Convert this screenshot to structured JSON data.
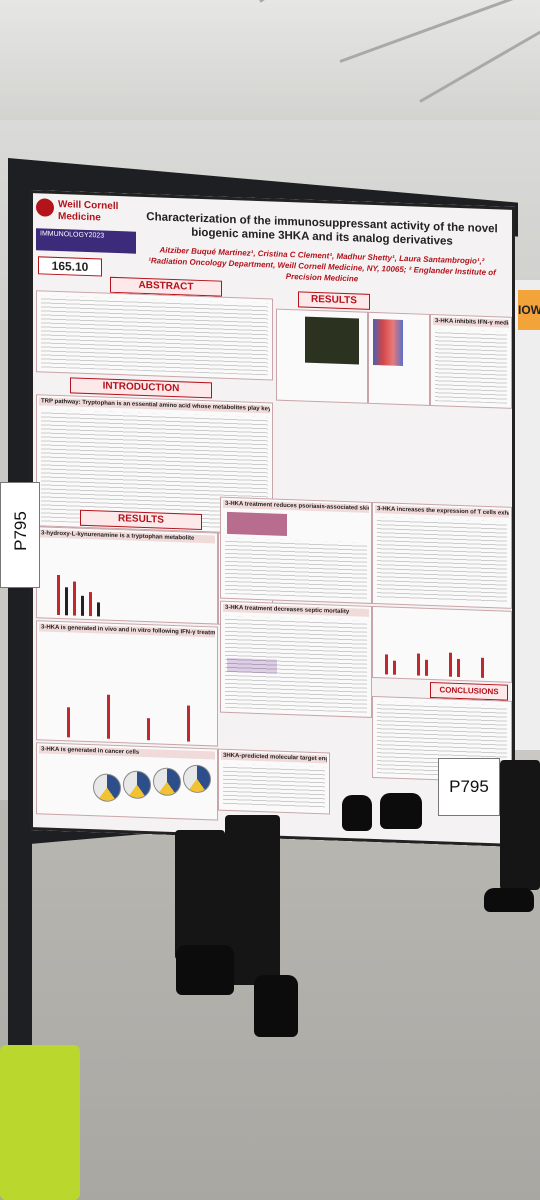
{
  "poster": {
    "institution": "Weill Cornell\nMedicine",
    "conference": "IMMUNOLOGY2023",
    "board_number": "165.10",
    "title": "Characterization of the immunosuppressant activity of the novel biogenic amine 3HKA and its analog derivatives",
    "authors": "Aitziber Buqué Martinez¹, Cristina C Clement¹, Madhur Shetty¹, Laura Santambrogio¹,²",
    "affiliations": "¹Radiation Oncology Department, Weill Cornell Medicine, NY, 10065; ² Englander Institute of Precision Medicine",
    "sections": {
      "abstract": "ABSTRACT",
      "introduction": "INTRODUCTION",
      "results_left": "RESULTS",
      "results_top": "RESULTS",
      "conclusions": "CONCLUSIONS"
    },
    "subheads": {
      "trp": "TRP pathway: Tryptophan is an essential amino acid whose metabolites play key roles in diverse physiological processes",
      "metabolite": "3-hydroxy-L-kynurenamine is a tryptophan metabolite",
      "ifn": "3-HKA is generated in vivo and in vitro following IFN-γ treatment",
      "cancer": "3-HKA is generated in cancer cells",
      "psoriasis": "3-HKA treatment reduces psoriasis-associated skin inflammation",
      "il17": "3-HKA increases the expression of T cells exhaustion markers",
      "stat": "3-HKA inhibits IFN-γ mediated STAT1 activation in DCs",
      "sepsis": "3-HKA treatment decreases septic mortality",
      "target": "3HKA-predicted molecular target engagement"
    },
    "cancer_labels": [
      "Lung cancer A549",
      "Breast cancer BT-474",
      "Breast cancer BT-474",
      "Breast cancer T47D"
    ]
  },
  "signs": {
    "board_label_left": "P795",
    "board_label_bottom": "P795"
  },
  "right_poster": {
    "fragment": "IOW"
  }
}
